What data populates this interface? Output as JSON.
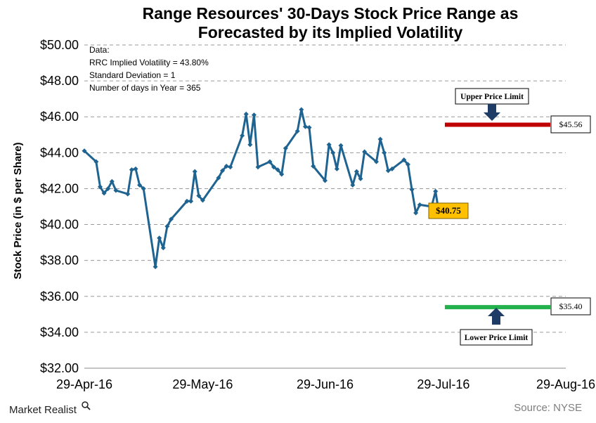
{
  "chart_data": {
    "type": "line",
    "title_line1": "Range Resources' 30-Days Stock Price Range as",
    "title_line2": "Forecasted by its Implied Volatility",
    "ylabel": "Stock Price (in $ per Share)",
    "ylim": [
      32,
      50
    ],
    "yticks": [
      "$32.00",
      "$34.00",
      "$36.00",
      "$38.00",
      "$40.00",
      "$42.00",
      "$44.00",
      "$46.00",
      "$48.00",
      "$50.00"
    ],
    "xticks": [
      "29-Apr-16",
      "29-May-16",
      "29-Jun-16",
      "29-Jul-16",
      "29-Aug-16"
    ],
    "grid": true,
    "series": [
      {
        "color": "#1f6391",
        "points": [
          [
            "2016-04-29",
            44.1
          ],
          [
            "2016-05-02",
            43.5
          ],
          [
            "2016-05-03",
            42.1
          ],
          [
            "2016-05-04",
            41.75
          ],
          [
            "2016-05-05",
            42.0
          ],
          [
            "2016-05-06",
            42.4
          ],
          [
            "2016-05-07",
            41.9
          ],
          [
            "2016-05-10",
            41.7
          ],
          [
            "2016-05-11",
            43.05
          ],
          [
            "2016-05-12",
            43.1
          ],
          [
            "2016-05-13",
            42.2
          ],
          [
            "2016-05-14",
            42.0
          ],
          [
            "2016-05-17",
            37.65
          ],
          [
            "2016-05-18",
            39.25
          ],
          [
            "2016-05-19",
            38.7
          ],
          [
            "2016-05-20",
            39.9
          ],
          [
            "2016-05-21",
            40.3
          ],
          [
            "2016-05-25",
            41.3
          ],
          [
            "2016-05-26",
            41.3
          ],
          [
            "2016-05-27",
            42.95
          ],
          [
            "2016-05-28",
            41.6
          ],
          [
            "2016-05-29",
            41.35
          ],
          [
            "2016-06-02",
            42.6
          ],
          [
            "2016-06-03",
            43.0
          ],
          [
            "2016-06-04",
            43.25
          ],
          [
            "2016-06-05",
            43.2
          ],
          [
            "2016-06-08",
            44.95
          ],
          [
            "2016-06-09",
            46.15
          ],
          [
            "2016-06-10",
            44.45
          ],
          [
            "2016-06-11",
            46.1
          ],
          [
            "2016-06-12",
            43.2
          ],
          [
            "2016-06-15",
            43.5
          ],
          [
            "2016-06-16",
            43.2
          ],
          [
            "2016-06-17",
            43.05
          ],
          [
            "2016-06-18",
            42.8
          ],
          [
            "2016-06-19",
            44.25
          ],
          [
            "2016-06-22",
            45.2
          ],
          [
            "2016-06-23",
            46.4
          ],
          [
            "2016-06-24",
            45.45
          ],
          [
            "2016-06-25",
            45.4
          ],
          [
            "2016-06-26",
            43.25
          ],
          [
            "2016-06-29",
            42.45
          ],
          [
            "2016-06-30",
            44.45
          ],
          [
            "2016-07-01",
            44.0
          ],
          [
            "2016-07-02",
            43.1
          ],
          [
            "2016-07-03",
            44.4
          ],
          [
            "2016-07-06",
            42.2
          ],
          [
            "2016-07-07",
            42.95
          ],
          [
            "2016-07-08",
            42.55
          ],
          [
            "2016-07-09",
            44.05
          ],
          [
            "2016-07-12",
            43.5
          ],
          [
            "2016-07-13",
            44.75
          ],
          [
            "2016-07-14",
            44.0
          ],
          [
            "2016-07-15",
            43.0
          ],
          [
            "2016-07-16",
            43.1
          ],
          [
            "2016-07-19",
            43.6
          ],
          [
            "2016-07-20",
            43.35
          ],
          [
            "2016-07-21",
            41.95
          ],
          [
            "2016-07-22",
            40.65
          ],
          [
            "2016-07-23",
            41.1
          ],
          [
            "2016-07-26",
            41.0
          ],
          [
            "2016-07-27",
            41.85
          ],
          [
            "2016-07-28",
            40.45
          ],
          [
            "2016-07-29",
            40.75
          ]
        ]
      }
    ],
    "last_price_label": "$40.75",
    "upper_limit": {
      "value": 45.56,
      "label": "$45.56",
      "from": "2016-07-29",
      "to": "2016-08-28",
      "color": "#c00000"
    },
    "lower_limit": {
      "value": 35.4,
      "label": "$35.40",
      "from": "2016-07-29",
      "to": "2016-08-28",
      "color": "#22b14c"
    },
    "annotations": {
      "data_title": "Data:",
      "iv": "RRC Implied Volatility = 43.80%",
      "sd": "Standard Deviation = 1",
      "days": "Number of days in Year = 365",
      "upper_callout": "Upper Price Limit",
      "lower_callout": "Lower Price Limit"
    },
    "source": "Source: NYSE",
    "brand": "Market Realist"
  }
}
